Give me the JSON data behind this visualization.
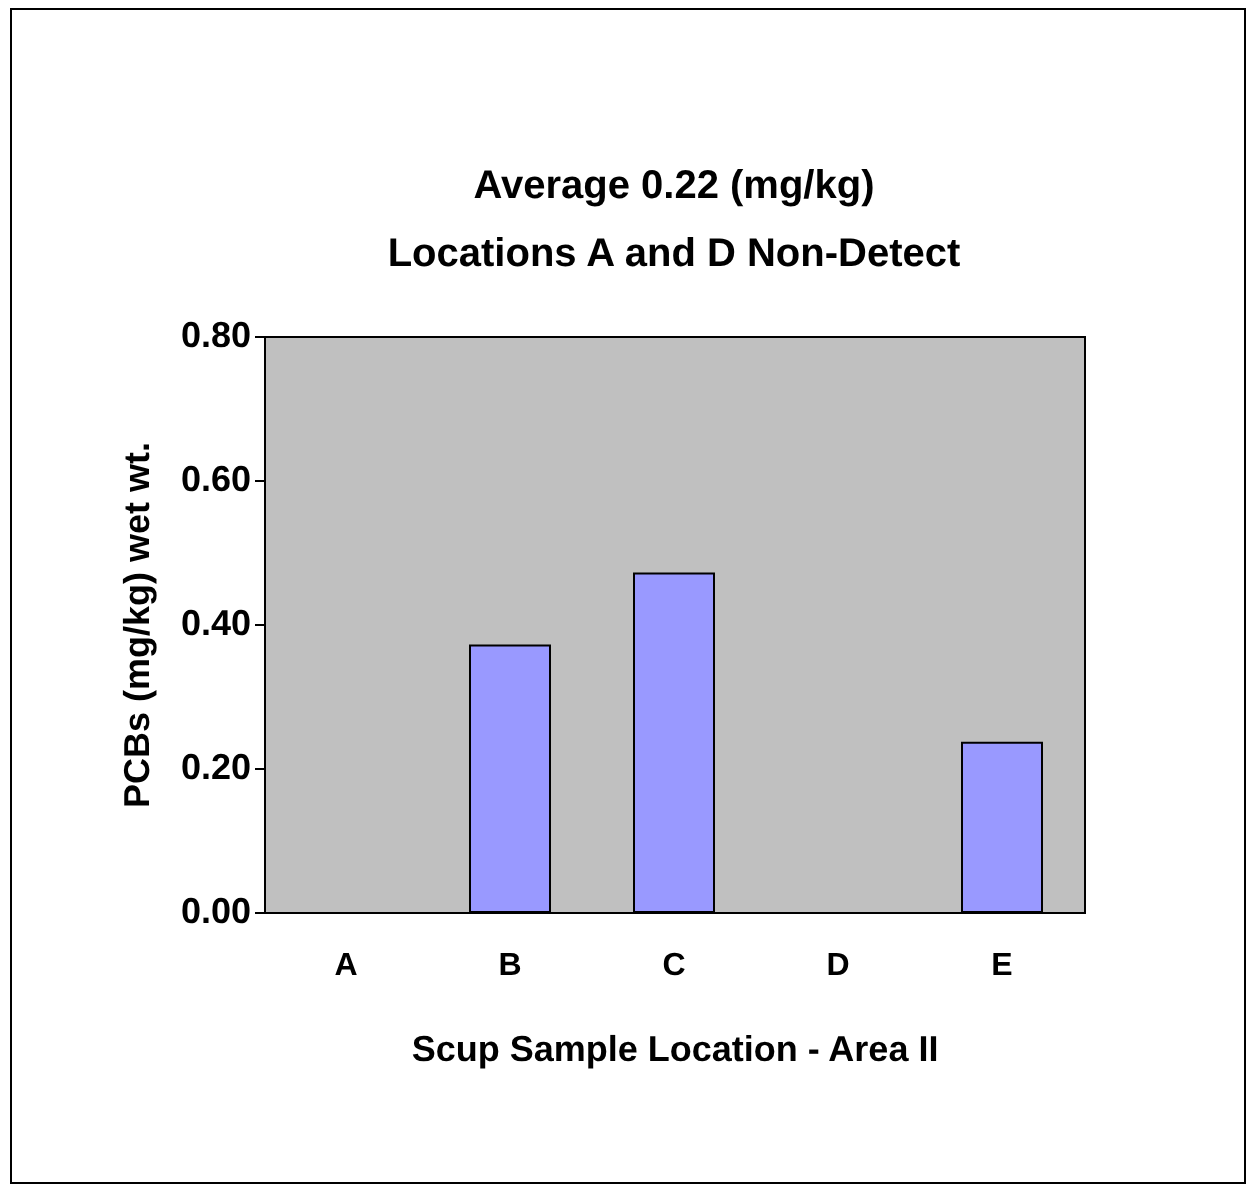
{
  "chart_data": {
    "type": "bar",
    "title": "Average 0.22 (mg/kg)",
    "subtitle": "Locations A and D Non-Detect",
    "xlabel": "Scup Sample Location - Area II",
    "ylabel": "PCBs (mg/kg) wet wt.",
    "categories": [
      "A",
      "B",
      "C",
      "D",
      "E"
    ],
    "values": [
      null,
      0.37,
      0.47,
      null,
      0.235
    ],
    "color": "#9999ff",
    "ylim": [
      0,
      0.8
    ],
    "yticks": [
      {
        "value": 0,
        "label": "0.00"
      },
      {
        "value": 0.2,
        "label": "0.20"
      },
      {
        "value": 0.4,
        "label": "0.40"
      },
      {
        "value": 0.6,
        "label": "0.60"
      },
      {
        "value": 0.8,
        "label": "0.80"
      }
    ],
    "grid": false
  }
}
